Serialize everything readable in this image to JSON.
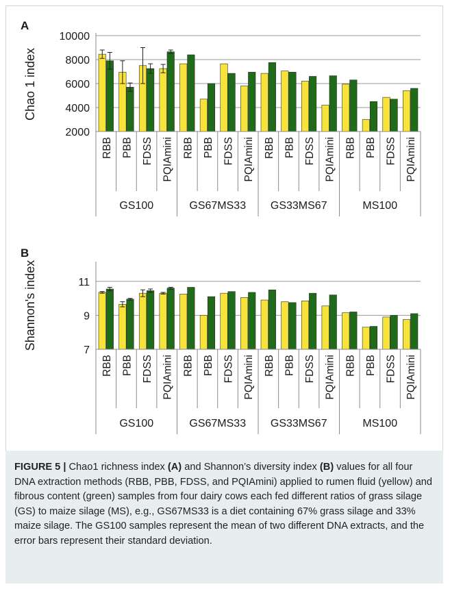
{
  "chart_data": [
    {
      "type": "bar",
      "panel_label": "A",
      "ylabel": "Chao 1 index",
      "ylim": [
        2000,
        10000
      ],
      "yticks": [
        2000,
        4000,
        6000,
        8000,
        10000
      ],
      "grid": true,
      "methods": [
        "RBB",
        "PBB",
        "FDSS",
        "PQIAmini"
      ],
      "groups": [
        "GS100",
        "GS67MS33",
        "GS33MS67",
        "MS100"
      ],
      "series": [
        {
          "color": "#f7e33a",
          "values": [
            8450,
            6950,
            7500,
            7250,
            7650,
            4700,
            7650,
            5800,
            6850,
            7050,
            6200,
            4200,
            5950,
            3000,
            4850,
            5400
          ]
        },
        {
          "color": "#1f6b1a",
          "values": [
            7900,
            5700,
            7250,
            8650,
            8400,
            6000,
            6850,
            6950,
            7750,
            6950,
            6600,
            6650,
            6300,
            4500,
            4700,
            5600
          ]
        }
      ],
      "error_bars": [
        [
          350,
          950,
          1500,
          350,
          0,
          0,
          0,
          0,
          0,
          0,
          0,
          0,
          0,
          0,
          0,
          0
        ],
        [
          700,
          350,
          400,
          150,
          0,
          0,
          0,
          0,
          0,
          0,
          0,
          0,
          0,
          0,
          0,
          0
        ]
      ]
    },
    {
      "type": "bar",
      "panel_label": "B",
      "ylabel": "Shannon's index",
      "ylim": [
        7,
        12
      ],
      "yticks": [
        7,
        9,
        11
      ],
      "grid": true,
      "methods": [
        "RBB",
        "PBB",
        "FDSS",
        "PQIAmini"
      ],
      "groups": [
        "GS100",
        "GS67MS33",
        "GS33MS67",
        "MS100"
      ],
      "series": [
        {
          "color": "#f7e33a",
          "values": [
            10.35,
            9.65,
            10.3,
            10.3,
            10.25,
            9.0,
            10.3,
            10.05,
            9.9,
            9.8,
            9.85,
            9.55,
            9.15,
            8.3,
            8.9,
            8.75
          ]
        },
        {
          "color": "#1f6b1a",
          "values": [
            10.55,
            9.95,
            10.45,
            10.6,
            10.65,
            10.1,
            10.4,
            10.35,
            10.5,
            9.75,
            10.3,
            10.2,
            9.2,
            8.35,
            9.0,
            9.1
          ]
        }
      ],
      "error_bars": [
        [
          0.05,
          0.15,
          0.2,
          0.05,
          0,
          0,
          0,
          0,
          0,
          0,
          0,
          0,
          0,
          0,
          0,
          0
        ],
        [
          0.1,
          0.05,
          0.1,
          0.05,
          0,
          0,
          0,
          0,
          0,
          0,
          0,
          0,
          0,
          0,
          0,
          0
        ]
      ]
    }
  ],
  "caption": {
    "label": "FIGURE 5 |",
    "t1": " Chao1 richness index ",
    "a": "(A)",
    "t2": " and Shannon’s diversity index ",
    "b": "(B)",
    "t3": " values for all four DNA extraction methods (RBB, PBB, FDSS, and PQIAmini) applied to rumen fluid (yellow) and fibrous content (green) samples from four dairy cows each fed different ratios of grass silage (GS) to maize silage (MS), e.g., GS67MS33 is a diet containing 67% grass silage and 33% maize silage. The GS100 samples represent the mean of two different DNA extracts, and the error bars represent their standard deviation."
  }
}
